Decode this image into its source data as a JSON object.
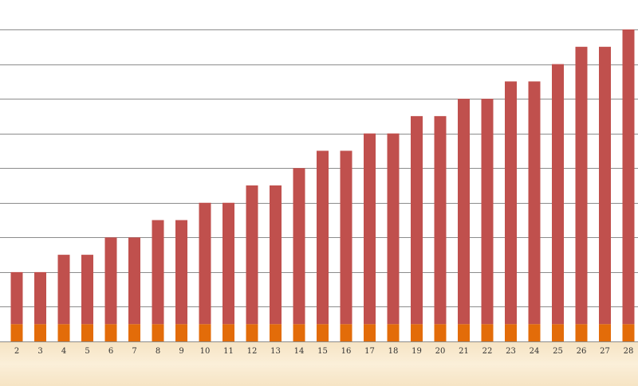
{
  "chart_data": {
    "type": "bar",
    "stacked": true,
    "categories": [
      "2",
      "3",
      "4",
      "5",
      "6",
      "7",
      "8",
      "9",
      "10",
      "11",
      "12",
      "13",
      "14",
      "15",
      "16",
      "17",
      "18",
      "19",
      "20",
      "21",
      "22",
      "23",
      "24",
      "25",
      "26",
      "27",
      "28"
    ],
    "series": [
      {
        "values": [
          0.5,
          0.5,
          0.5,
          0.5,
          0.5,
          0.5,
          0.5,
          0.5,
          0.5,
          0.5,
          0.5,
          0.5,
          0.5,
          0.5,
          0.5,
          0.5,
          0.5,
          0.5,
          0.5,
          0.5,
          0.5,
          0.5,
          0.5,
          0.5,
          0.5,
          0.5,
          0.5
        ]
      },
      {
        "values": [
          1.5,
          1.5,
          2.0,
          2.0,
          2.5,
          2.5,
          3.0,
          3.0,
          3.5,
          3.5,
          4.0,
          4.0,
          4.5,
          5.0,
          5.0,
          5.5,
          5.5,
          6.0,
          6.0,
          6.5,
          6.5,
          7.0,
          7.0,
          7.5,
          8.0,
          8.0,
          8.5
        ]
      }
    ],
    "ylim": [
      0,
      9
    ],
    "grid": true,
    "legend": "none",
    "colors": {
      "base": "#E36C09",
      "top": "#C0504D",
      "grid": "#8C8C8C",
      "background_band": "#F6E4C4"
    }
  }
}
